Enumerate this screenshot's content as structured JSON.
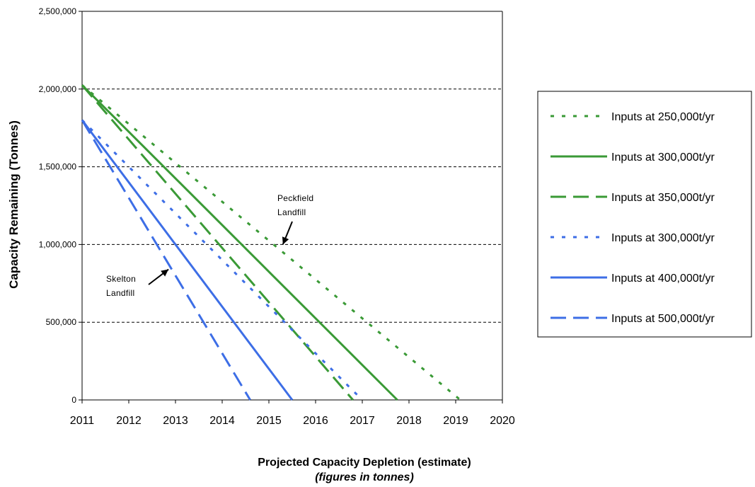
{
  "chart_data": {
    "type": "line",
    "ylabel": "Capacity Remaining (Tonnes)",
    "xlabel": "Projected Capacity Depletion (estimate)",
    "xlabel_sub": "(figures in tonnes)",
    "xlim": [
      2011,
      2020
    ],
    "ylim": [
      0,
      2500000
    ],
    "x_ticks": [
      "2011",
      "2012",
      "2013",
      "2014",
      "2015",
      "2016",
      "2017",
      "2018",
      "2019",
      "2020"
    ],
    "y_ticks": [
      "0",
      "500,000",
      "1,000,000",
      "1,500,000",
      "2,000,000",
      "2,500,000"
    ],
    "grid": "horizontal dashed",
    "legend_position": "right",
    "series": [
      {
        "name": "Inputs at 250,000t/yr",
        "color": "#3a9a36",
        "style": "dotted",
        "x": [
          2011,
          2019.1
        ],
        "y": [
          2025000,
          0
        ]
      },
      {
        "name": "Inputs at 300,000t/yr",
        "color": "#3a9a36",
        "style": "solid",
        "x": [
          2011,
          2017.75
        ],
        "y": [
          2025000,
          0
        ]
      },
      {
        "name": "Inputs at 350,000t/yr",
        "color": "#3a9a36",
        "style": "dashed",
        "x": [
          2011,
          2016.8
        ],
        "y": [
          2025000,
          0
        ]
      },
      {
        "name": "Inputs at 300,000t/yr",
        "color": "#3d6ee6",
        "style": "dotted",
        "x": [
          2011,
          2017.0
        ],
        "y": [
          1800000,
          0
        ]
      },
      {
        "name": "Inputs at 400,000t/yr",
        "color": "#3d6ee6",
        "style": "solid",
        "x": [
          2011,
          2015.5
        ],
        "y": [
          1800000,
          0
        ]
      },
      {
        "name": "Inputs at 500,000t/yr",
        "color": "#3d6ee6",
        "style": "dashed",
        "x": [
          2011,
          2014.6
        ],
        "y": [
          1800000,
          0
        ]
      }
    ],
    "annotations": [
      {
        "lines": [
          "Peckfield",
          "Landfill"
        ],
        "arrow_to": [
          2015.3,
          1000000
        ]
      },
      {
        "lines": [
          "Skelton",
          "Landfill"
        ],
        "arrow_to": [
          2012.85,
          840000
        ]
      }
    ]
  }
}
